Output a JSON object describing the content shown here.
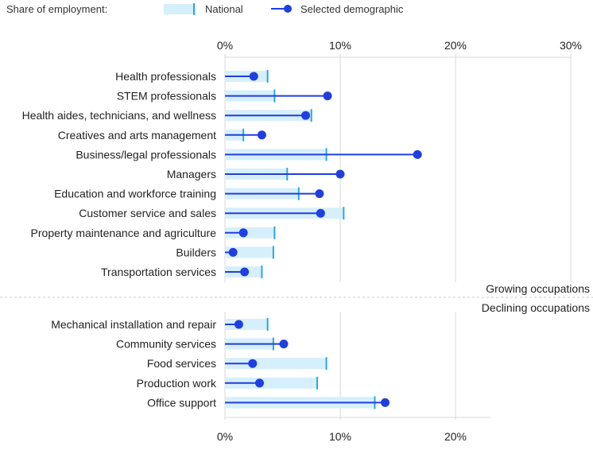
{
  "legend": {
    "title": "Share of employment:",
    "national_label": "National",
    "demographic_label": "Selected demographic"
  },
  "colors": {
    "national_fill": "#d6effc",
    "national_marker": "#29a8e0",
    "demographic": "#1f3fe0",
    "grid": "#d8d8d8",
    "separator": "#c8c8c8"
  },
  "chart_data": [
    {
      "type": "bar",
      "group": "Growing occupations",
      "xlabel": "",
      "ylabel": "",
      "xlim": [
        0,
        30
      ],
      "ticks": [
        "0%",
        "10%",
        "20%",
        "30%"
      ],
      "categories": [
        "Health professionals",
        "STEM professionals",
        "Health aides, technicians, and wellness",
        "Creatives and arts management",
        "Business/legal professionals",
        "Managers",
        "Education and workforce training",
        "Customer service and sales",
        "Property maintenance and agriculture",
        "Builders",
        "Transportation services"
      ],
      "series": [
        {
          "name": "National",
          "values": [
            3.7,
            4.3,
            7.5,
            1.6,
            8.8,
            5.4,
            6.4,
            10.3,
            4.3,
            4.2,
            3.2
          ]
        },
        {
          "name": "Selected demographic",
          "values": [
            2.5,
            8.9,
            7.0,
            3.2,
            16.7,
            10.0,
            8.2,
            8.3,
            1.6,
            0.7,
            1.7
          ]
        }
      ]
    },
    {
      "type": "bar",
      "group": "Declining occupations",
      "xlabel": "",
      "ylabel": "",
      "xlim": [
        0,
        23
      ],
      "ticks": [
        "0%",
        "10%",
        "20%"
      ],
      "categories": [
        "Mechanical installation and repair",
        "Community services",
        "Food services",
        "Production work",
        "Office support"
      ],
      "series": [
        {
          "name": "National",
          "values": [
            3.7,
            4.2,
            8.8,
            8.0,
            13.0
          ]
        },
        {
          "name": "Selected demographic",
          "values": [
            1.2,
            5.1,
            2.4,
            3.0,
            13.9
          ]
        }
      ]
    }
  ]
}
